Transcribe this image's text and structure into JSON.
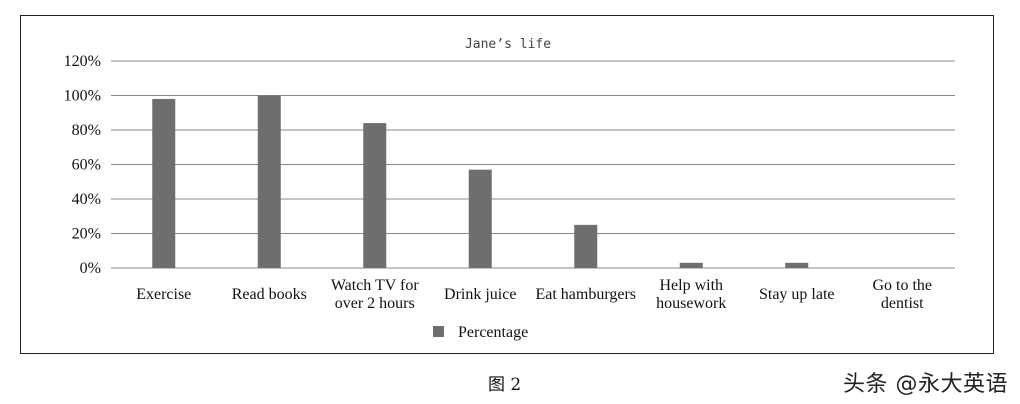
{
  "chart_data": {
    "type": "bar",
    "title": "Jane’s life",
    "categories": [
      "Exercise",
      "Read books",
      "Watch TV for over 2 hours",
      "Drink juice",
      "Eat hamburgers",
      "Help with housework",
      "Stay up late",
      "Go to the dentist"
    ],
    "category_lines": [
      [
        "Exercise"
      ],
      [
        "Read books"
      ],
      [
        "Watch TV for",
        "over 2 hours"
      ],
      [
        "Drink juice"
      ],
      [
        "Eat hamburgers"
      ],
      [
        "Help with",
        "housework"
      ],
      [
        "Stay up late"
      ],
      [
        "Go to the",
        "dentist"
      ]
    ],
    "series": [
      {
        "name": "Percentage",
        "values": [
          98,
          100,
          84,
          57,
          25,
          3,
          3,
          0
        ]
      }
    ],
    "ylim": [
      0,
      120
    ],
    "yticks": [
      0,
      20,
      40,
      60,
      80,
      100,
      120
    ],
    "ytick_labels": [
      "0%",
      "20%",
      "40%",
      "60%",
      "80%",
      "100%",
      "120%"
    ],
    "xlabel": "",
    "ylabel": "",
    "grid": true,
    "legend_position": "bottom-center",
    "bar_color": "#6e6e6e",
    "grid_color": "#888888"
  },
  "caption": "图 2",
  "watermark": "头条 @永大英语"
}
